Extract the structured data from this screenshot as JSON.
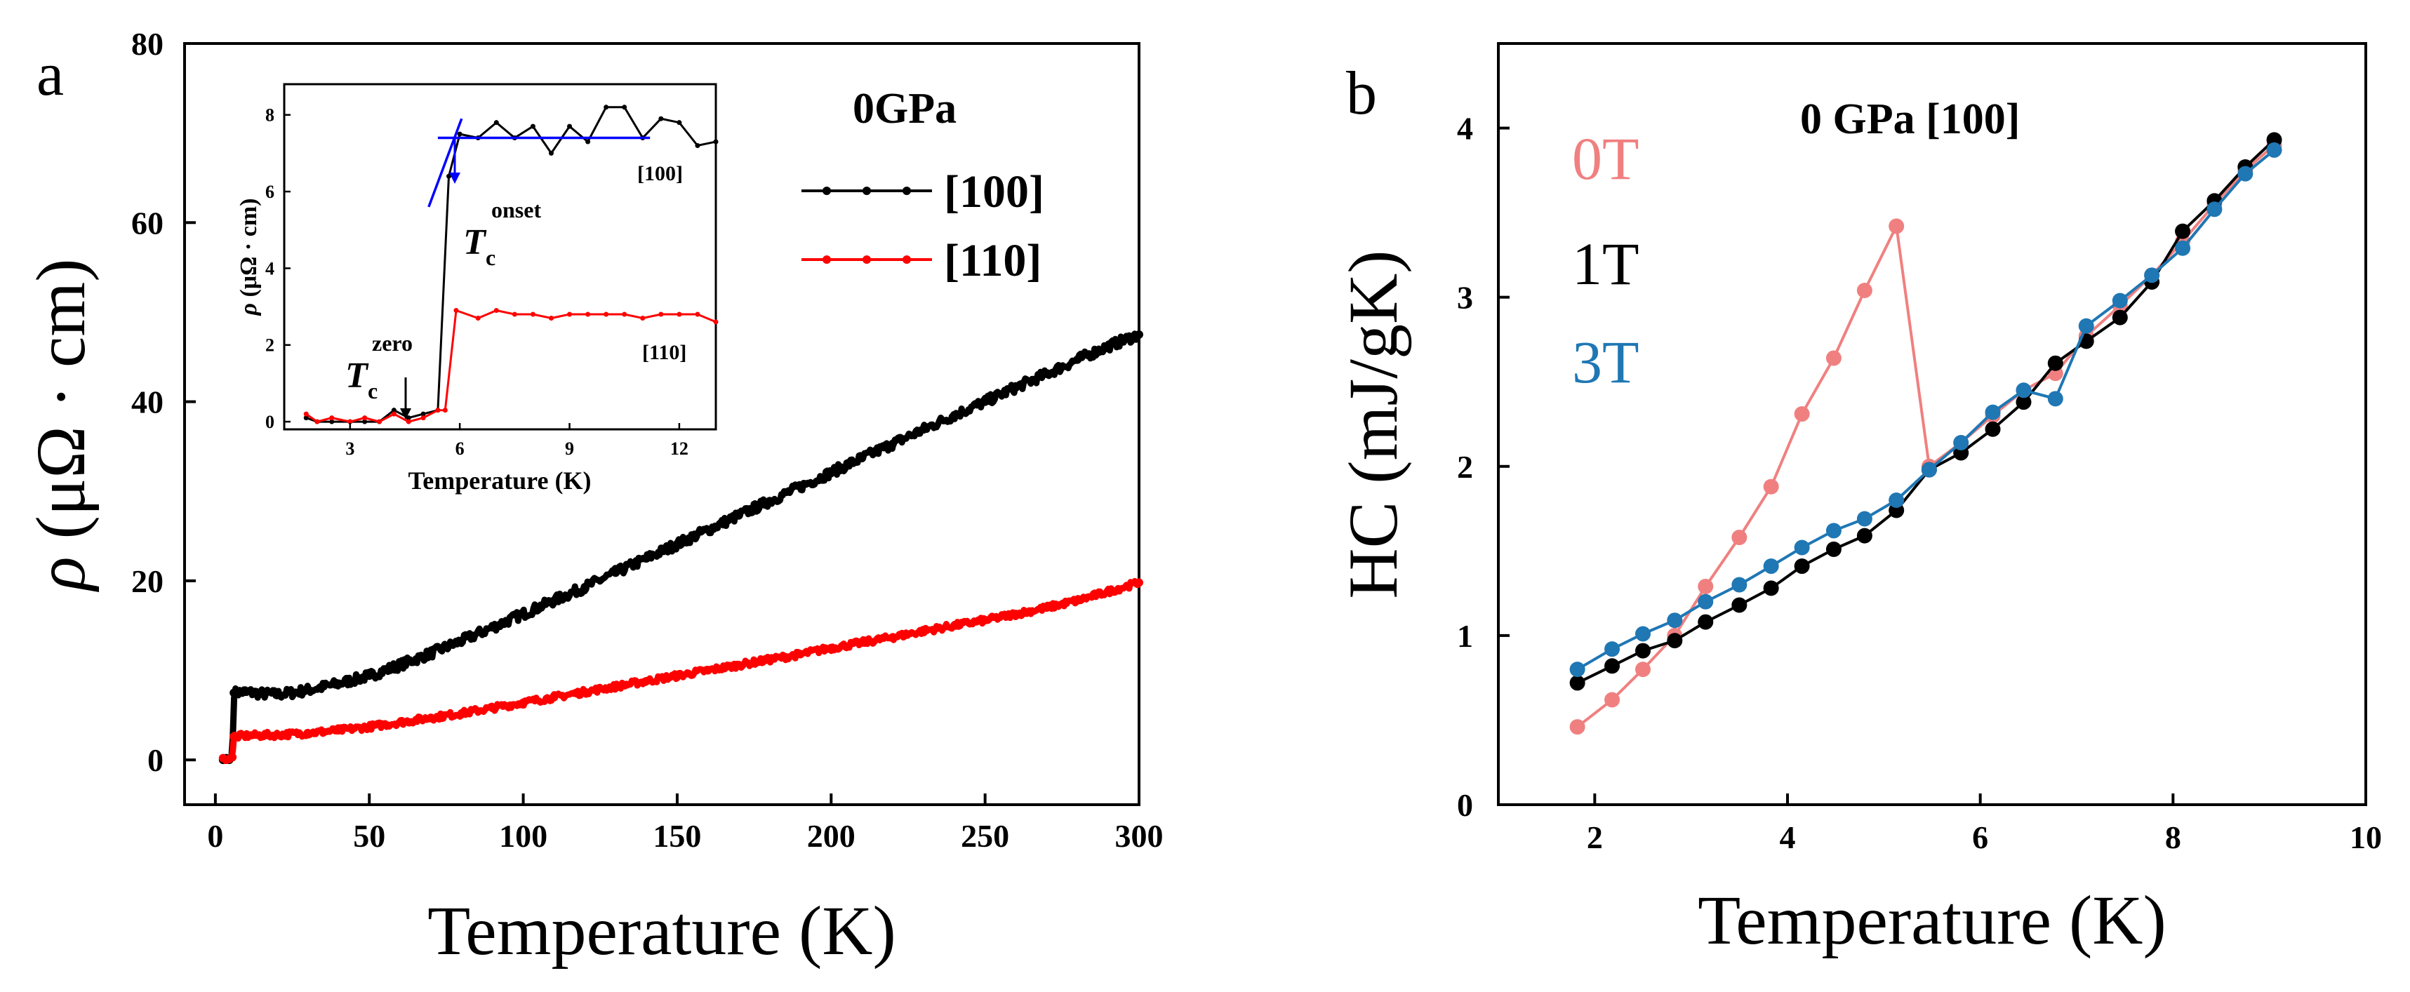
{
  "chart_data": [
    {
      "type": "scatter",
      "panel_label": "a",
      "title": "0GPa",
      "xlabel": "Temperature (K)",
      "ylabel_symbol": "ρ",
      "ylabel_unit": " (μΩ · cm)",
      "xlim": [
        -10,
        300
      ],
      "ylim": [
        -5,
        80
      ],
      "xticks": [
        0,
        50,
        100,
        150,
        200,
        250,
        300
      ],
      "yticks": [
        0,
        20,
        40,
        60,
        80
      ],
      "legend_position": "right",
      "series": [
        {
          "name": "[100]",
          "color": "#000000",
          "jump": {
            "t_low": 5.8,
            "v_low": 0.3
          },
          "x": [
            2.5,
            3.5,
            4.5,
            5.5,
            6,
            10,
            15,
            20,
            25,
            30,
            40,
            50,
            60,
            70,
            80,
            90,
            100,
            110,
            120,
            130,
            140,
            150,
            160,
            170,
            180,
            190,
            200,
            210,
            220,
            230,
            240,
            250,
            260,
            270,
            280,
            290,
            300
          ],
          "y": [
            0.0,
            0.2,
            0.0,
            0.3,
            7.5,
            7.6,
            7.4,
            7.3,
            7.5,
            7.8,
            8.5,
            9.4,
            10.6,
            11.9,
            13.3,
            14.8,
            16.3,
            17.8,
            19.3,
            20.9,
            22.5,
            24.1,
            25.7,
            27.3,
            28.9,
            30.5,
            32.1,
            33.7,
            35.3,
            36.9,
            38.5,
            40.0,
            41.6,
            43.1,
            44.7,
            46.2,
            47.5
          ]
        },
        {
          "name": "[110]",
          "color": "#ff0000",
          "jump": {
            "t_low": 5.8,
            "v_low": 0.3
          },
          "x": [
            2.5,
            3.5,
            4.5,
            5.5,
            6,
            10,
            20,
            30,
            40,
            50,
            60,
            70,
            80,
            90,
            100,
            110,
            120,
            130,
            140,
            150,
            160,
            170,
            180,
            190,
            200,
            210,
            220,
            230,
            240,
            250,
            260,
            270,
            280,
            290,
            300
          ],
          "y": [
            0.2,
            0.0,
            0.1,
            0.3,
            2.6,
            2.7,
            2.8,
            3.0,
            3.3,
            3.7,
            4.2,
            4.7,
            5.2,
            5.8,
            6.4,
            7.0,
            7.6,
            8.2,
            8.8,
            9.4,
            10.0,
            10.6,
            11.2,
            11.8,
            12.5,
            13.1,
            13.7,
            14.4,
            15.0,
            15.6,
            16.3,
            17.0,
            17.8,
            18.8,
            19.8
          ]
        }
      ],
      "inset": {
        "type": "line",
        "xlabel": "Temperature (K)",
        "ylabel_symbol": "ρ",
        "ylabel_unit": " (μΩ · cm)",
        "xlim": [
          1.2,
          13.0
        ],
        "ylim": [
          -0.2,
          8.8
        ],
        "xticks": [
          3,
          6,
          9,
          12
        ],
        "yticks": [
          0,
          2,
          4,
          6,
          8
        ],
        "annotations": {
          "tc_onset_main": "T",
          "tc_onset_sub": "c",
          "tc_onset_sup": "onset",
          "tc_zero_main": "T",
          "tc_zero_sub": "c",
          "tc_zero_sup": "zero",
          "label_100": "[100]",
          "label_110": "[110]"
        },
        "series": [
          {
            "name": "[100]",
            "color": "#000000",
            "x": [
              1.8,
              2.1,
              2.5,
              3.0,
              3.4,
              3.8,
              4.2,
              4.6,
              5.0,
              5.4,
              5.7,
              6.0,
              6.5,
              7.0,
              7.5,
              8.0,
              8.5,
              9.0,
              9.5,
              10.0,
              10.5,
              11.0,
              11.5,
              12.0,
              12.5,
              13.0
            ],
            "y": [
              0.1,
              0.0,
              0.0,
              0.0,
              0.0,
              0.0,
              0.3,
              0.1,
              0.2,
              0.3,
              6.4,
              7.5,
              7.4,
              7.8,
              7.4,
              7.7,
              7.0,
              7.7,
              7.3,
              8.2,
              8.2,
              7.4,
              7.9,
              7.8,
              7.2,
              7.3
            ]
          },
          {
            "name": "[110]",
            "color": "#ff0000",
            "x": [
              1.8,
              2.1,
              2.5,
              3.0,
              3.4,
              3.8,
              4.2,
              4.6,
              5.0,
              5.4,
              5.6,
              5.9,
              6.5,
              7.0,
              7.5,
              8.0,
              8.5,
              9.0,
              9.5,
              10.0,
              10.5,
              11.0,
              11.5,
              12.0,
              12.5,
              13.0
            ],
            "y": [
              0.2,
              0.0,
              0.1,
              0.0,
              0.1,
              0.0,
              0.2,
              0.0,
              0.1,
              0.3,
              0.3,
              2.9,
              2.7,
              2.9,
              2.8,
              2.8,
              2.7,
              2.8,
              2.8,
              2.8,
              2.8,
              2.7,
              2.8,
              2.8,
              2.8,
              2.6
            ]
          }
        ],
        "fit_lines": [
          {
            "name": "normal-state-fit",
            "color": "#0000ff",
            "x": [
              5.4,
              11.2
            ],
            "y": [
              7.4,
              7.4
            ]
          },
          {
            "name": "transition-fit",
            "color": "#0000ff",
            "x": [
              5.15,
              6.05
            ],
            "y": [
              5.6,
              7.9
            ]
          }
        ]
      }
    },
    {
      "type": "line",
      "panel_label": "b",
      "title": "0 GPa  [100]",
      "xlabel": "Temperature (K)",
      "ylabel": "HC (mJ/gK)",
      "xlim": [
        1,
        10
      ],
      "ylim": [
        0,
        4.5
      ],
      "xticks": [
        2,
        4,
        6,
        8,
        10
      ],
      "yticks": [
        0,
        1,
        2,
        3,
        4
      ],
      "legend_position": "upper-left",
      "series": [
        {
          "name": "0T",
          "color": "#f08080",
          "x": [
            1.82,
            2.18,
            2.5,
            2.83,
            3.15,
            3.5,
            3.83,
            4.15,
            4.48,
            4.8,
            5.13,
            5.47,
            5.8,
            6.13,
            6.45,
            6.78,
            7.1,
            7.45,
            7.78,
            8.1,
            8.43,
            8.75,
            9.05
          ],
          "y": [
            0.46,
            0.62,
            0.8,
            1.0,
            1.29,
            1.58,
            1.88,
            2.31,
            2.64,
            3.04,
            3.42,
            2.0,
            2.14,
            2.3,
            2.45,
            2.55,
            2.77,
            2.95,
            3.13,
            3.33,
            3.55,
            3.75,
            3.9
          ]
        },
        {
          "name": "1T",
          "color": "#000000",
          "x": [
            1.82,
            2.18,
            2.5,
            2.83,
            3.15,
            3.5,
            3.83,
            4.15,
            4.48,
            4.8,
            5.13,
            5.47,
            5.8,
            6.13,
            6.45,
            6.78,
            7.1,
            7.45,
            7.78,
            8.1,
            8.43,
            8.75,
            9.05
          ],
          "y": [
            0.72,
            0.82,
            0.91,
            0.97,
            1.08,
            1.18,
            1.28,
            1.41,
            1.51,
            1.59,
            1.74,
            1.98,
            2.08,
            2.22,
            2.38,
            2.61,
            2.74,
            2.88,
            3.09,
            3.39,
            3.57,
            3.77,
            3.93
          ]
        },
        {
          "name": "3T",
          "color": "#1f77b4",
          "x": [
            1.82,
            2.18,
            2.5,
            2.83,
            3.15,
            3.5,
            3.83,
            4.15,
            4.48,
            4.8,
            5.13,
            5.47,
            5.8,
            6.13,
            6.45,
            6.78,
            7.1,
            7.45,
            7.78,
            8.1,
            8.43,
            8.75,
            9.05
          ],
          "y": [
            0.8,
            0.92,
            1.01,
            1.09,
            1.2,
            1.3,
            1.41,
            1.52,
            1.62,
            1.69,
            1.8,
            1.98,
            2.14,
            2.32,
            2.45,
            2.4,
            2.83,
            2.98,
            3.13,
            3.29,
            3.52,
            3.73,
            3.87
          ]
        }
      ]
    }
  ]
}
